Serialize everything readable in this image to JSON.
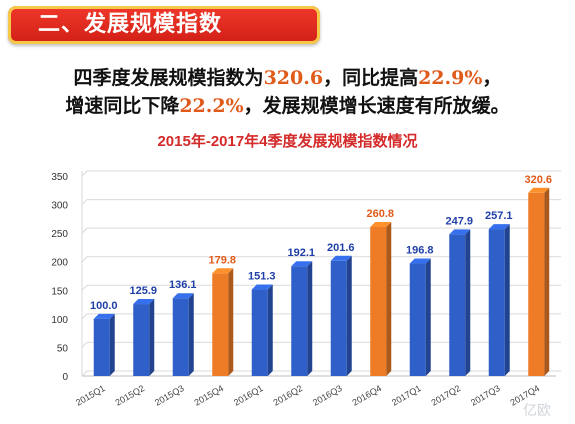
{
  "header": {
    "title": "二、发展规模指数"
  },
  "summary": {
    "line1_a": "四季度发展规模指数为",
    "line1_val": "320.6",
    "line1_b": "，同比提高",
    "line1_pct": "22.9%",
    "line1_c": "，",
    "line2_a": "增速同比下降",
    "line2_pct": "22.2%",
    "line2_b": "，发展规模增长速度有所放缓。"
  },
  "chart_data": {
    "type": "bar",
    "title": "2015年-2017年4季度发展规模指数情况",
    "categories": [
      "2015Q1",
      "2015Q2",
      "2015Q3",
      "2015Q4",
      "2016Q1",
      "2016Q2",
      "2016Q3",
      "2016Q4",
      "2017Q1",
      "2017Q2",
      "2017Q3",
      "2017Q4"
    ],
    "values": [
      100.0,
      125.9,
      136.1,
      179.8,
      151.3,
      192.1,
      201.6,
      260.8,
      196.8,
      247.9,
      257.1,
      320.6
    ],
    "value_labels": [
      "100.0",
      "125.9",
      "136.1",
      "179.8",
      "151.3",
      "192.1",
      "201.6",
      "260.8",
      "196.8",
      "247.9",
      "257.1",
      "320.6"
    ],
    "highlight": [
      false,
      false,
      false,
      true,
      false,
      false,
      false,
      true,
      false,
      false,
      false,
      true
    ],
    "ylim": [
      0,
      350
    ],
    "yticks": [
      0,
      50,
      100,
      150,
      200,
      250,
      300,
      350
    ],
    "xlabel": "",
    "ylabel": "",
    "grid": true,
    "legend": "none"
  },
  "colors": {
    "regular_bar": "#2f5fc8",
    "highlight_bar": "#ee7b25",
    "regular_label": "#1f3fa8",
    "highlight_label": "#e05a1a",
    "banner": "#e0261c"
  },
  "watermark": "亿欧"
}
